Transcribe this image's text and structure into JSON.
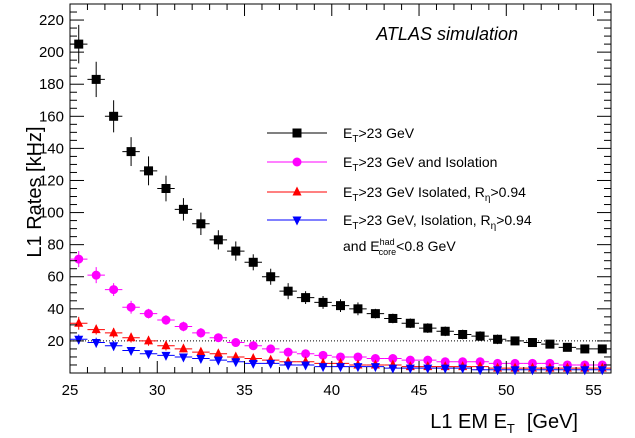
{
  "chart_data": {
    "type": "scatter",
    "title": "",
    "annotation": "ATLAS simulation",
    "xlabel": {
      "main": "L1 EM E",
      "sub": "T",
      "units": "[GeV]"
    },
    "ylabel": "L1 Rates [kHz]",
    "xlim": [
      25,
      56
    ],
    "ylim": [
      0,
      230
    ],
    "xticks": [
      25,
      30,
      35,
      40,
      45,
      50,
      55
    ],
    "yticks": [
      20,
      40,
      60,
      80,
      100,
      120,
      140,
      160,
      180,
      200,
      220
    ],
    "reference_line": {
      "y": 20,
      "style": "dotted"
    },
    "grid": false,
    "legend_position": "right-center",
    "x": [
      25.5,
      26.5,
      27.5,
      28.5,
      29.5,
      30.5,
      31.5,
      32.5,
      33.5,
      34.5,
      35.5,
      36.5,
      37.5,
      38.5,
      39.5,
      40.5,
      41.5,
      42.5,
      43.5,
      44.5,
      45.5,
      46.5,
      47.5,
      48.5,
      49.5,
      50.5,
      51.5,
      52.5,
      53.5,
      54.5,
      55.5
    ],
    "series": [
      {
        "name": "E_T>23 GeV",
        "color": "#000000",
        "marker": "square",
        "values": [
          205,
          183,
          160,
          138,
          126,
          115,
          102,
          93,
          83,
          76,
          69,
          60,
          51,
          47,
          44,
          42,
          40,
          37,
          34,
          31,
          28,
          26,
          24,
          23,
          21,
          20,
          19,
          18,
          16,
          15,
          15
        ],
        "errors": [
          12,
          11,
          10,
          9,
          9,
          8,
          7,
          7,
          6,
          6,
          5,
          5,
          5,
          4,
          4,
          4,
          4,
          3,
          3,
          3,
          3,
          3,
          3,
          3,
          3,
          2,
          2,
          2,
          2,
          2,
          2
        ]
      },
      {
        "name": "E_T>23 GeV and Isolation",
        "color": "#ff00ff",
        "marker": "circle",
        "values": [
          71,
          61,
          52,
          41,
          37,
          33,
          29,
          25,
          22,
          19,
          17,
          15,
          13,
          12,
          11,
          10,
          10,
          9,
          9,
          8,
          8,
          7,
          7,
          7,
          6,
          6,
          6,
          6,
          5,
          5,
          5
        ],
        "errors": [
          5,
          5,
          4,
          4,
          3,
          3,
          3,
          3,
          2,
          2,
          2,
          2,
          2,
          2,
          2,
          2,
          2,
          2,
          2,
          1,
          1,
          1,
          1,
          1,
          1,
          1,
          1,
          1,
          1,
          1,
          1
        ]
      },
      {
        "name": "E_T>23 GeV Isolated, R_η>0.94",
        "color": "#ff0000",
        "marker": "triangle-up",
        "values": [
          31,
          27,
          25,
          22,
          20,
          17,
          15,
          13,
          12,
          10,
          9,
          8,
          7,
          7,
          6,
          6,
          5,
          5,
          5,
          4,
          4,
          4,
          4,
          4,
          3,
          3,
          3,
          3,
          3,
          3,
          3
        ],
        "errors": [
          4,
          3,
          3,
          3,
          3,
          3,
          2,
          2,
          2,
          2,
          2,
          2,
          2,
          1,
          1,
          1,
          1,
          1,
          1,
          1,
          1,
          1,
          1,
          1,
          1,
          1,
          1,
          1,
          1,
          1,
          1
        ]
      },
      {
        "name": "E_T>23 GeV, Isolation, R_η>0.94 and E_core^had<0.8 GeV",
        "color": "#0000ff",
        "marker": "triangle-down",
        "values": [
          21,
          19,
          17,
          14,
          12,
          11,
          10,
          9,
          8,
          7,
          6,
          6,
          5,
          5,
          4,
          4,
          4,
          4,
          3,
          3,
          3,
          3,
          3,
          2,
          2,
          2,
          2,
          2,
          2,
          2,
          2
        ],
        "errors": [
          3,
          3,
          3,
          2,
          2,
          2,
          2,
          2,
          2,
          1,
          1,
          1,
          1,
          1,
          1,
          1,
          1,
          1,
          1,
          1,
          1,
          1,
          1,
          1,
          1,
          1,
          1,
          1,
          1,
          1,
          1
        ]
      }
    ],
    "legend": [
      {
        "marker": "square",
        "color": "#000000",
        "main": "E",
        "sub": "T",
        "rest": ">23 GeV"
      },
      {
        "marker": "circle",
        "color": "#ff00ff",
        "main": "E",
        "sub": "T",
        "rest": ">23 GeV and Isolation"
      },
      {
        "marker": "triangle-up",
        "color": "#ff0000",
        "main": "E",
        "sub": "T",
        "rest": ">23 GeV Isolated, R",
        "sub2": "η",
        "rest2": ">0.94"
      },
      {
        "marker": "triangle-down",
        "color": "#0000ff",
        "main": "E",
        "sub": "T",
        "rest": ">23 GeV, Isolation, R",
        "sub2": "η",
        "rest2": ">0.94",
        "line2": {
          "pre": "and E",
          "sup": "had",
          "sub": "core",
          "post": "<0.8 GeV"
        }
      }
    ]
  }
}
